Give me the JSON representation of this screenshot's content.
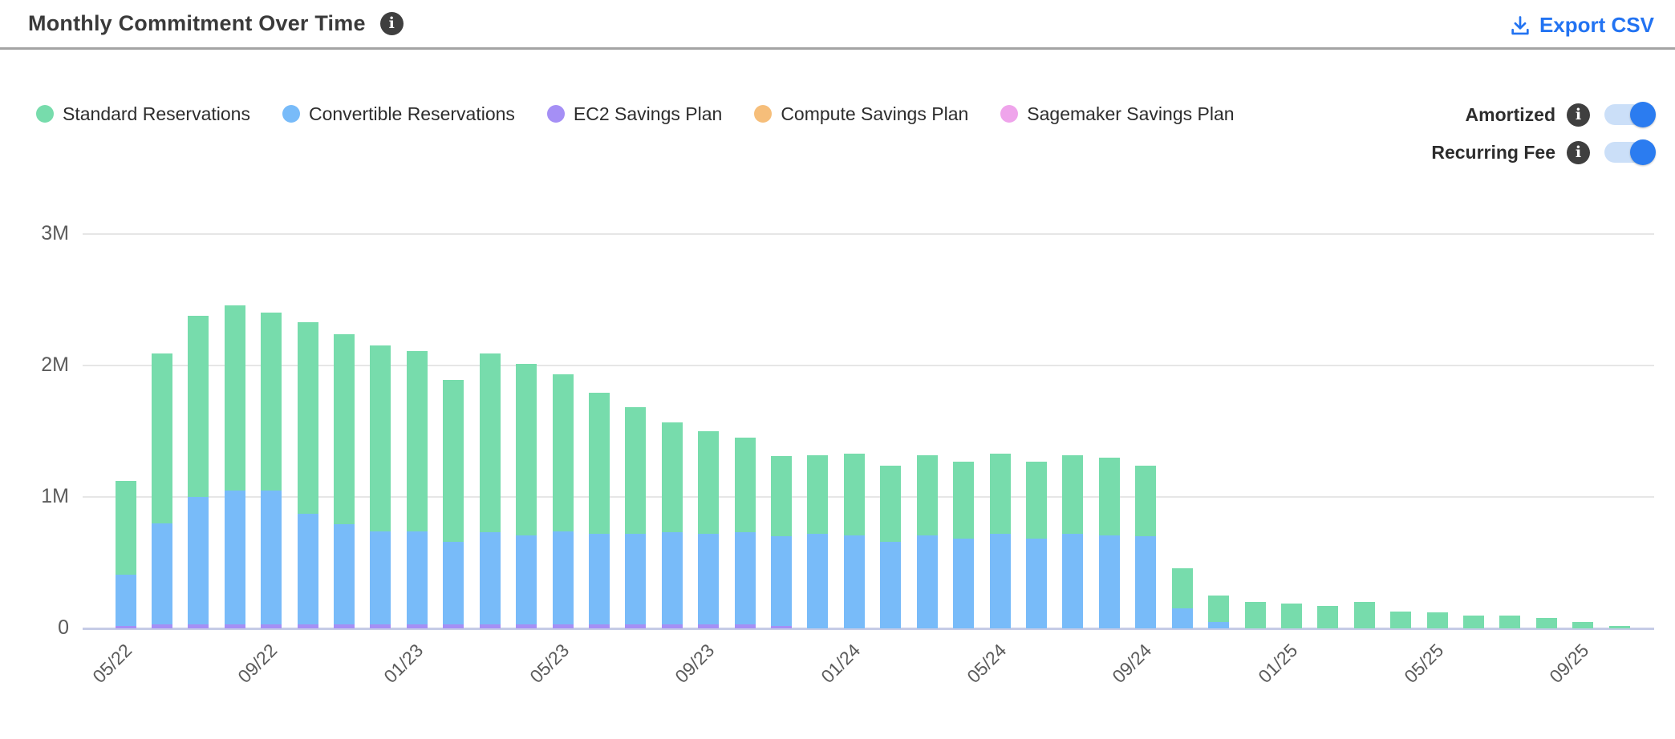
{
  "header": {
    "title": "Monthly Commitment Over Time",
    "export_label": "Export CSV"
  },
  "icons": {
    "info_glyph": "i"
  },
  "controls": {
    "toggles": [
      {
        "label": "Amortized",
        "on": true
      },
      {
        "label": "Recurring Fee",
        "on": true
      }
    ]
  },
  "colors": {
    "accent_blue": "#2273f2",
    "toggle_track": "#cbdff8",
    "toggle_knob": "#2b7cf0",
    "divider": "#a4a4a4",
    "gridline": "#e6e6e6",
    "axis_baseline": "#c5cbe6",
    "title_text": "#3a3a3a",
    "axis_text": "#5b5b5b"
  },
  "chart_data": {
    "type": "bar",
    "stacked": true,
    "title": "Monthly Commitment Over Time",
    "xlabel": "",
    "ylabel": "",
    "value_unit": "millions",
    "ylim": [
      0,
      3
    ],
    "grid": true,
    "legend_position": "top-left",
    "ytick_labels": [
      "0",
      "1M",
      "2M",
      "3M"
    ],
    "ytick_values": [
      0,
      1,
      2,
      3
    ],
    "xticks_shown": [
      "05/22",
      "09/22",
      "01/23",
      "05/23",
      "09/23",
      "01/24",
      "05/24",
      "09/24",
      "01/25",
      "05/25",
      "09/25"
    ],
    "categories": [
      "05/22",
      "06/22",
      "07/22",
      "08/22",
      "09/22",
      "10/22",
      "11/22",
      "12/22",
      "01/23",
      "02/23",
      "03/23",
      "04/23",
      "05/23",
      "06/23",
      "07/23",
      "08/23",
      "09/23",
      "10/23",
      "11/23",
      "12/23",
      "01/24",
      "02/24",
      "03/24",
      "04/24",
      "05/24",
      "06/24",
      "07/24",
      "08/24",
      "09/24",
      "10/24",
      "11/24",
      "12/24",
      "01/25",
      "02/25",
      "03/25",
      "04/25",
      "05/25",
      "06/25",
      "07/25",
      "08/25",
      "09/25",
      "10/25"
    ],
    "stack_order": [
      4,
      3,
      2,
      1,
      0
    ],
    "series": [
      {
        "name": "Standard Reservations",
        "color": "#77dcac",
        "values": [
          0.71,
          1.29,
          1.38,
          1.41,
          1.35,
          1.46,
          1.45,
          1.41,
          1.37,
          1.23,
          1.36,
          1.3,
          1.19,
          1.07,
          0.96,
          0.84,
          0.78,
          0.72,
          0.61,
          0.6,
          0.62,
          0.58,
          0.61,
          0.59,
          0.61,
          0.59,
          0.6,
          0.59,
          0.54,
          0.31,
          0.2,
          0.2,
          0.19,
          0.17,
          0.2,
          0.13,
          0.12,
          0.1,
          0.1,
          0.08,
          0.05,
          0.02
        ]
      },
      {
        "name": "Convertible Reservations",
        "color": "#78bbf9",
        "values": [
          0.39,
          0.77,
          0.97,
          1.02,
          1.02,
          0.84,
          0.76,
          0.71,
          0.71,
          0.63,
          0.7,
          0.68,
          0.71,
          0.69,
          0.69,
          0.7,
          0.69,
          0.7,
          0.68,
          0.72,
          0.71,
          0.66,
          0.71,
          0.68,
          0.72,
          0.68,
          0.72,
          0.71,
          0.7,
          0.15,
          0.05,
          0,
          0,
          0,
          0,
          0,
          0,
          0,
          0,
          0,
          0,
          0
        ]
      },
      {
        "name": "EC2 Savings Plan",
        "color": "#a58ff5",
        "values": [
          0.02,
          0.03,
          0.03,
          0.03,
          0.03,
          0.03,
          0.03,
          0.03,
          0.03,
          0.03,
          0.03,
          0.03,
          0.03,
          0.03,
          0.03,
          0.03,
          0.03,
          0.03,
          0.02,
          0,
          0,
          0,
          0,
          0,
          0,
          0,
          0,
          0,
          0,
          0,
          0,
          0,
          0,
          0,
          0,
          0,
          0,
          0,
          0,
          0,
          0,
          0
        ]
      },
      {
        "name": "Compute Savings Plan",
        "color": "#f6be7a",
        "values": [
          0,
          0,
          0,
          0,
          0,
          0,
          0,
          0,
          0,
          0,
          0,
          0,
          0,
          0,
          0,
          0,
          0,
          0,
          0,
          0,
          0,
          0,
          0,
          0,
          0,
          0,
          0,
          0,
          0,
          0,
          0,
          0,
          0,
          0,
          0,
          0,
          0,
          0,
          0,
          0,
          0,
          0
        ]
      },
      {
        "name": "Sagemaker Savings Plan",
        "color": "#efa4eb",
        "values": [
          0,
          0,
          0,
          0,
          0,
          0,
          0,
          0,
          0,
          0,
          0,
          0,
          0,
          0,
          0,
          0,
          0,
          0,
          0,
          0,
          0,
          0,
          0,
          0,
          0,
          0,
          0,
          0,
          0,
          0,
          0,
          0,
          0,
          0,
          0,
          0,
          0,
          0,
          0,
          0,
          0,
          0
        ]
      }
    ]
  }
}
